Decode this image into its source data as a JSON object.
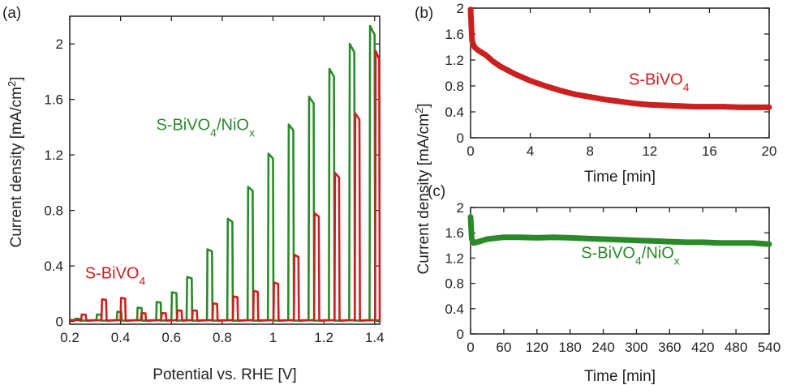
{
  "colors": {
    "green": "#2a8a2a",
    "red": "#cc1f1f",
    "axis": "#222222"
  },
  "chart_data": [
    {
      "panel": "(a)",
      "type": "line",
      "xlabel": "Potential vs. RHE [V]",
      "ylabel": "Current density [mA/cm",
      "ylabel_sup": "2",
      "ylabel_close": "]",
      "xlim": [
        0.2,
        1.42
      ],
      "ylim": [
        -0.02,
        2.2
      ],
      "xticks": [
        0.2,
        0.4,
        0.6,
        0.8,
        1.0,
        1.2,
        1.4
      ],
      "xtick_labels": [
        "0.2",
        "0.4",
        "0.6",
        "0.8",
        "1",
        "1.2",
        "1.4"
      ],
      "yticks": [
        0,
        0.4,
        0.8,
        1.2,
        1.6,
        2.0
      ],
      "ytick_labels": [
        "0",
        "0.4",
        "0.8",
        "1.2",
        "1.6",
        "2"
      ],
      "series": [
        {
          "color": "green",
          "annotation": {
            "parts": [
              "S-BiVO",
              "4",
              "/NiO",
              "x"
            ],
            "at": [
              0.54,
              1.38
            ]
          },
          "pulses": [
            {
              "on": 0.22,
              "off": 0.24,
              "peak": 0.02
            },
            {
              "on": 0.305,
              "off": 0.325,
              "peak": 0.05
            },
            {
              "on": 0.385,
              "off": 0.405,
              "peak": 0.07
            },
            {
              "on": 0.465,
              "off": 0.485,
              "peak": 0.1
            },
            {
              "on": 0.54,
              "off": 0.56,
              "peak": 0.14
            },
            {
              "on": 0.6,
              "off": 0.622,
              "peak": 0.21
            },
            {
              "on": 0.66,
              "off": 0.682,
              "peak": 0.32
            },
            {
              "on": 0.74,
              "off": 0.762,
              "peak": 0.52
            },
            {
              "on": 0.82,
              "off": 0.842,
              "peak": 0.74
            },
            {
              "on": 0.9,
              "off": 0.922,
              "peak": 0.97
            },
            {
              "on": 0.98,
              "off": 1.002,
              "peak": 1.21
            },
            {
              "on": 1.06,
              "off": 1.082,
              "peak": 1.42
            },
            {
              "on": 1.14,
              "off": 1.162,
              "peak": 1.62
            },
            {
              "on": 1.22,
              "off": 1.242,
              "peak": 1.82
            },
            {
              "on": 1.3,
              "off": 1.322,
              "peak": 2.0
            },
            {
              "on": 1.38,
              "off": 1.402,
              "peak": 2.13
            }
          ]
        },
        {
          "color": "red",
          "annotation": {
            "parts": [
              "S-BiVO",
              "4",
              "",
              ""
            ],
            "at": [
              0.26,
              0.31
            ]
          },
          "pulses": [
            {
              "on": 0.245,
              "off": 0.265,
              "peak": 0.05
            },
            {
              "on": 0.325,
              "off": 0.345,
              "peak": 0.16
            },
            {
              "on": 0.4,
              "off": 0.42,
              "peak": 0.17
            },
            {
              "on": 0.48,
              "off": 0.5,
              "peak": 0.06
            },
            {
              "on": 0.56,
              "off": 0.58,
              "peak": 0.06
            },
            {
              "on": 0.622,
              "off": 0.642,
              "peak": 0.08
            },
            {
              "on": 0.682,
              "off": 0.702,
              "peak": 0.08
            },
            {
              "on": 0.762,
              "off": 0.782,
              "peak": 0.13
            },
            {
              "on": 0.842,
              "off": 0.862,
              "peak": 0.18
            },
            {
              "on": 0.922,
              "off": 0.942,
              "peak": 0.22
            },
            {
              "on": 1.002,
              "off": 1.022,
              "peak": 0.28
            },
            {
              "on": 1.082,
              "off": 1.102,
              "peak": 0.48
            },
            {
              "on": 1.162,
              "off": 1.182,
              "peak": 0.78
            },
            {
              "on": 1.242,
              "off": 1.262,
              "peak": 1.07
            },
            {
              "on": 1.322,
              "off": 1.342,
              "peak": 1.5
            },
            {
              "on": 1.402,
              "off": 1.42,
              "peak": 1.95
            }
          ]
        }
      ]
    },
    {
      "panel": "(b)",
      "type": "line",
      "xlabel": "Time [min]",
      "ylabel": "",
      "xlim": [
        0,
        20
      ],
      "ylim": [
        0,
        2
      ],
      "xticks": [
        0,
        4,
        8,
        12,
        16,
        20
      ],
      "xtick_labels": [
        "0",
        "4",
        "8",
        "12",
        "16",
        "20"
      ],
      "yticks": [
        0,
        0.4,
        0.8,
        1.2,
        1.6,
        2.0
      ],
      "ytick_labels": [
        "0",
        "0.4",
        "0.8",
        "1.2",
        "1.6",
        "2"
      ],
      "series": [
        {
          "color": "red",
          "annotation": {
            "parts": [
              "S-BiVO",
              "4",
              "",
              ""
            ],
            "at": [
              10.6,
              0.82
            ]
          },
          "x": [
            0,
            0.1,
            0.25,
            0.5,
            1,
            1.5,
            2,
            3,
            4,
            5,
            6,
            7,
            8,
            9,
            10,
            11,
            12,
            13,
            14,
            15,
            16,
            17,
            18,
            19,
            20
          ],
          "y": [
            1.98,
            1.5,
            1.4,
            1.35,
            1.28,
            1.18,
            1.1,
            0.98,
            0.88,
            0.8,
            0.73,
            0.67,
            0.63,
            0.59,
            0.56,
            0.53,
            0.51,
            0.5,
            0.49,
            0.48,
            0.48,
            0.48,
            0.47,
            0.47,
            0.47
          ]
        }
      ]
    },
    {
      "panel": "(c)",
      "type": "line",
      "xlabel": "Time [min]",
      "ylabel": "Current density [mA/cm",
      "ylabel_sup": "2",
      "ylabel_close": "]",
      "xlim": [
        0,
        540
      ],
      "ylim": [
        0,
        2
      ],
      "xticks": [
        0,
        60,
        120,
        180,
        240,
        300,
        360,
        420,
        480,
        540
      ],
      "xtick_labels": [
        "0",
        "60",
        "120",
        "180",
        "240",
        "300",
        "360",
        "420",
        "480",
        "540"
      ],
      "yticks": [
        0,
        0.4,
        0.8,
        1.2,
        1.6,
        2.0
      ],
      "ytick_labels": [
        "0",
        "0.4",
        "0.8",
        "1.2",
        "1.6",
        "2"
      ],
      "series": [
        {
          "color": "green",
          "annotation": {
            "parts": [
              "S-BiVO",
              "4",
              "/NiO",
              "x"
            ],
            "at": [
              200,
              1.2
            ]
          },
          "x": [
            0,
            2,
            6,
            15,
            30,
            60,
            90,
            120,
            150,
            180,
            210,
            240,
            270,
            300,
            330,
            360,
            390,
            420,
            450,
            480,
            510,
            540
          ],
          "y": [
            1.85,
            1.5,
            1.44,
            1.46,
            1.5,
            1.53,
            1.53,
            1.52,
            1.53,
            1.52,
            1.51,
            1.5,
            1.49,
            1.48,
            1.47,
            1.46,
            1.45,
            1.45,
            1.44,
            1.44,
            1.44,
            1.42
          ]
        }
      ]
    }
  ]
}
